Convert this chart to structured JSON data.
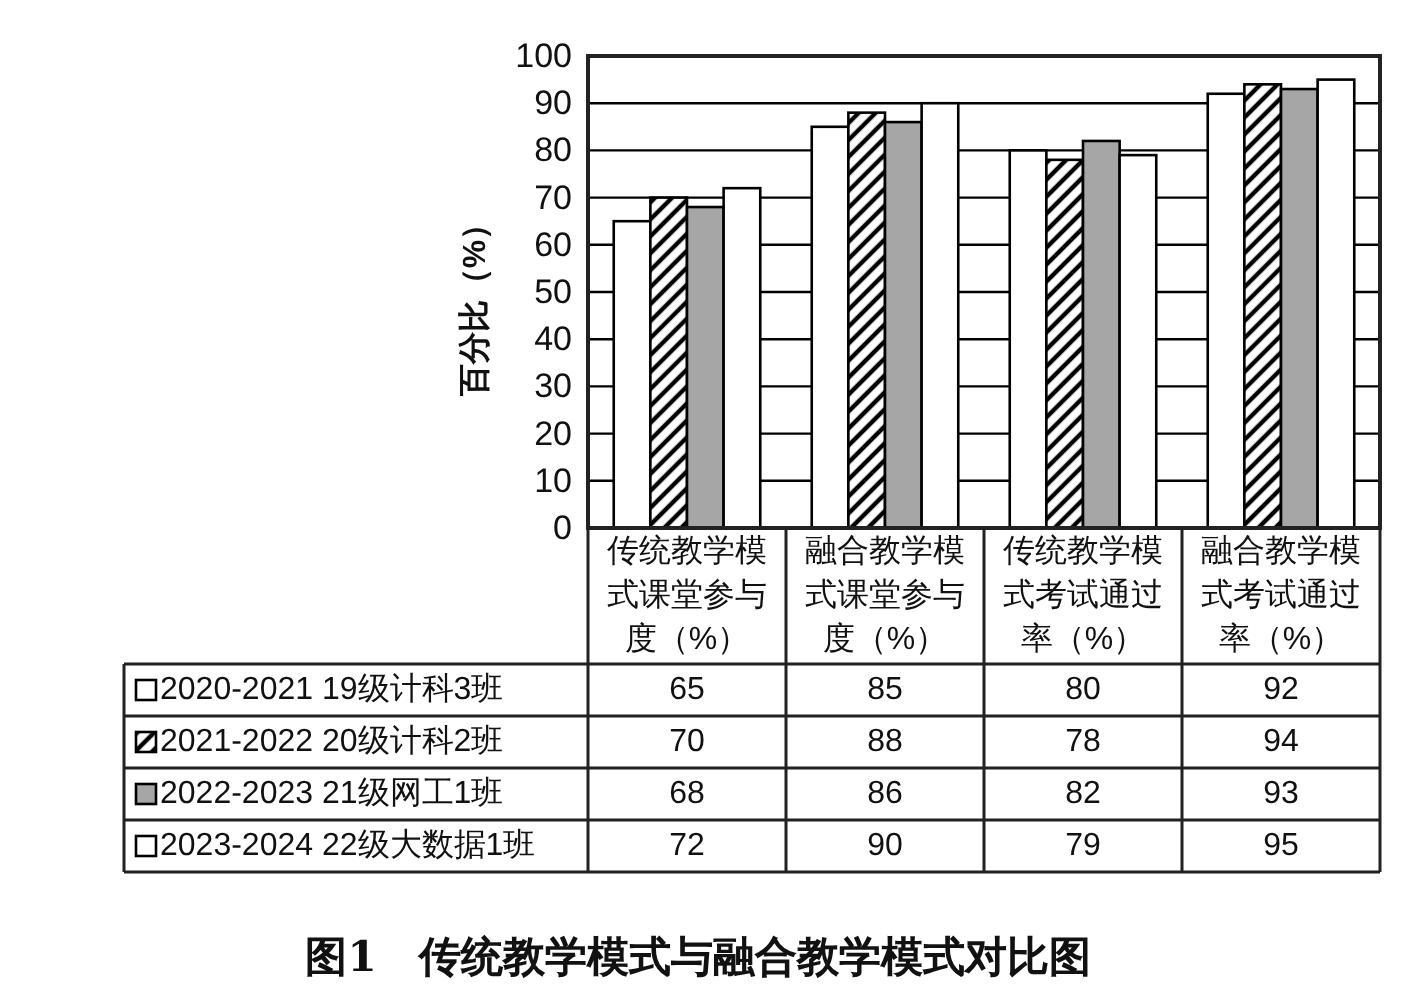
{
  "chart_data": {
    "type": "bar",
    "title": "图1　传统教学模式与融合教学模式对比图",
    "ylabel": "百分比（%）",
    "categories": [
      "传统教学模式课堂参与度（%）",
      "融合教学模式课堂参与度（%）",
      "传统教学模式考试通过率（%）",
      "融合教学模式考试通过率（%）"
    ],
    "series": [
      {
        "name": "2020-2021 19级计科3班",
        "color": "#ffffff",
        "values": [
          65,
          85,
          80,
          92
        ]
      },
      {
        "name": "2021-2022 20级计科2班",
        "color": "#000000",
        "values": [
          70,
          88,
          78,
          94
        ]
      },
      {
        "name": "2022-2023 21级网工1班",
        "color": "#a6a6a6",
        "values": [
          68,
          86,
          82,
          93
        ]
      },
      {
        "name": "2023-2024 22级大数据1班",
        "color": "#ffffff",
        "values": [
          72,
          90,
          79,
          95
        ]
      }
    ],
    "ylim": [
      0,
      100
    ],
    "yticks": [
      0,
      10,
      20,
      30,
      40,
      50,
      60,
      70,
      80,
      90,
      100
    ],
    "grid": "y",
    "legend": "bottom",
    "data_labels": true
  }
}
